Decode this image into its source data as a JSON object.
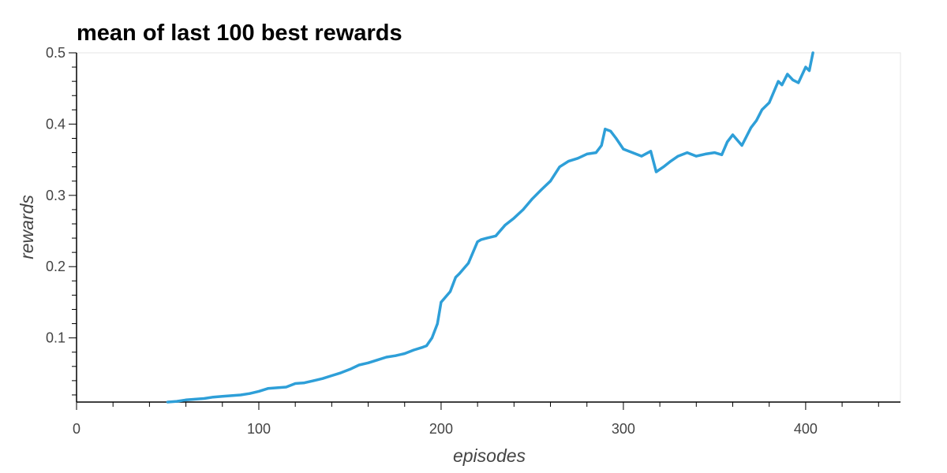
{
  "chart_data": {
    "type": "line",
    "title": "mean of last 100 best rewards",
    "xlabel": "episodes",
    "ylabel": "rewards",
    "xlim": [
      0,
      452
    ],
    "ylim": [
      0.01,
      0.5
    ],
    "x_ticks": [
      0,
      100,
      200,
      300,
      400
    ],
    "x_tick_labels": [
      "0",
      "100",
      "200",
      "300",
      "400"
    ],
    "x_minor_step": 20,
    "y_ticks": [
      0.1,
      0.2,
      0.3,
      0.4,
      0.5
    ],
    "y_tick_labels": [
      "0.1",
      "0.2",
      "0.3",
      "0.4",
      "0.5"
    ],
    "y_minor_step": 0.02,
    "grid": false,
    "line_color": "#2e9fd8",
    "series": [
      {
        "x": [
          50,
          55,
          60,
          65,
          70,
          75,
          80,
          85,
          90,
          95,
          100,
          105,
          110,
          115,
          120,
          125,
          130,
          135,
          140,
          145,
          150,
          155,
          160,
          165,
          170,
          175,
          180,
          185,
          190,
          192,
          195,
          198,
          200,
          205,
          208,
          210,
          215,
          220,
          222,
          225,
          230,
          235,
          240,
          245,
          250,
          255,
          260,
          265,
          270,
          275,
          280,
          285,
          288,
          290,
          293,
          296,
          300,
          305,
          310,
          315,
          318,
          322,
          326,
          330,
          335,
          340,
          345,
          350,
          354,
          357,
          360,
          365,
          370,
          373,
          376,
          380,
          385,
          387,
          390,
          393,
          396,
          400,
          402,
          404
        ],
        "values": [
          0.01,
          0.011,
          0.013,
          0.014,
          0.015,
          0.017,
          0.018,
          0.019,
          0.02,
          0.022,
          0.025,
          0.029,
          0.03,
          0.031,
          0.036,
          0.037,
          0.04,
          0.043,
          0.047,
          0.051,
          0.056,
          0.062,
          0.065,
          0.069,
          0.073,
          0.075,
          0.078,
          0.083,
          0.087,
          0.089,
          0.1,
          0.12,
          0.15,
          0.165,
          0.185,
          0.19,
          0.205,
          0.235,
          0.238,
          0.24,
          0.243,
          0.258,
          0.268,
          0.28,
          0.295,
          0.308,
          0.32,
          0.34,
          0.348,
          0.352,
          0.358,
          0.36,
          0.37,
          0.393,
          0.39,
          0.38,
          0.365,
          0.36,
          0.355,
          0.362,
          0.333,
          0.34,
          0.348,
          0.355,
          0.36,
          0.355,
          0.358,
          0.36,
          0.357,
          0.375,
          0.385,
          0.37,
          0.395,
          0.405,
          0.42,
          0.43,
          0.46,
          0.455,
          0.47,
          0.462,
          0.458,
          0.48,
          0.475,
          0.5
        ]
      }
    ]
  }
}
